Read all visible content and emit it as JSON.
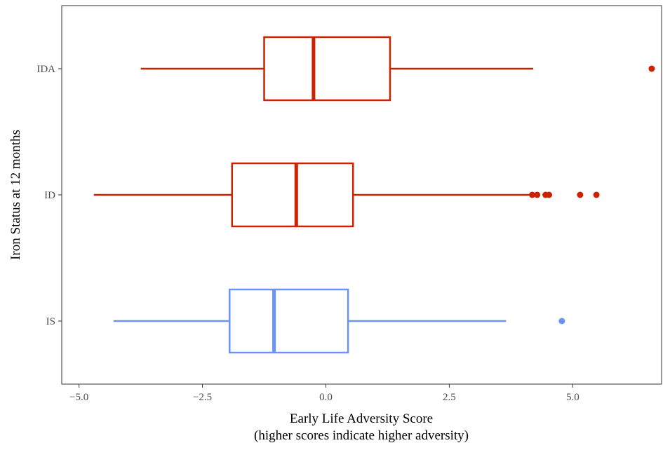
{
  "chart_data": {
    "type": "boxplot",
    "orientation": "horizontal",
    "xlabel_line1": "Early Life Adversity Score",
    "xlabel_line2": "(higher scores indicate higher adversity)",
    "ylabel": "Iron Status at 12 months",
    "xlim": [
      -5.35,
      6.8
    ],
    "x_ticks": [
      -5.0,
      -2.5,
      0.0,
      2.5,
      5.0
    ],
    "x_tick_labels": [
      "−5.0",
      "−2.5",
      "0.0",
      "2.5",
      "5.0"
    ],
    "categories": [
      "IDA",
      "ID",
      "IS"
    ],
    "grid": false,
    "legend": "none",
    "boxes": [
      {
        "category": "IDA",
        "whisker_low": -3.75,
        "q1": -1.25,
        "median": -0.25,
        "q3": 1.3,
        "whisker_high": 4.2,
        "outliers": [
          6.6
        ],
        "color": "#cc2200"
      },
      {
        "category": "ID",
        "whisker_low": -4.7,
        "q1": -1.9,
        "median": -0.6,
        "q3": 0.55,
        "whisker_high": 4.15,
        "outliers": [
          4.18,
          4.28,
          4.45,
          4.52,
          5.15,
          5.48
        ],
        "color": "#cc2200"
      },
      {
        "category": "IS",
        "whisker_low": -4.3,
        "q1": -1.95,
        "median": -1.05,
        "q3": 0.45,
        "whisker_high": 3.65,
        "outliers": [
          4.78
        ],
        "color": "#6b93f5"
      }
    ]
  }
}
